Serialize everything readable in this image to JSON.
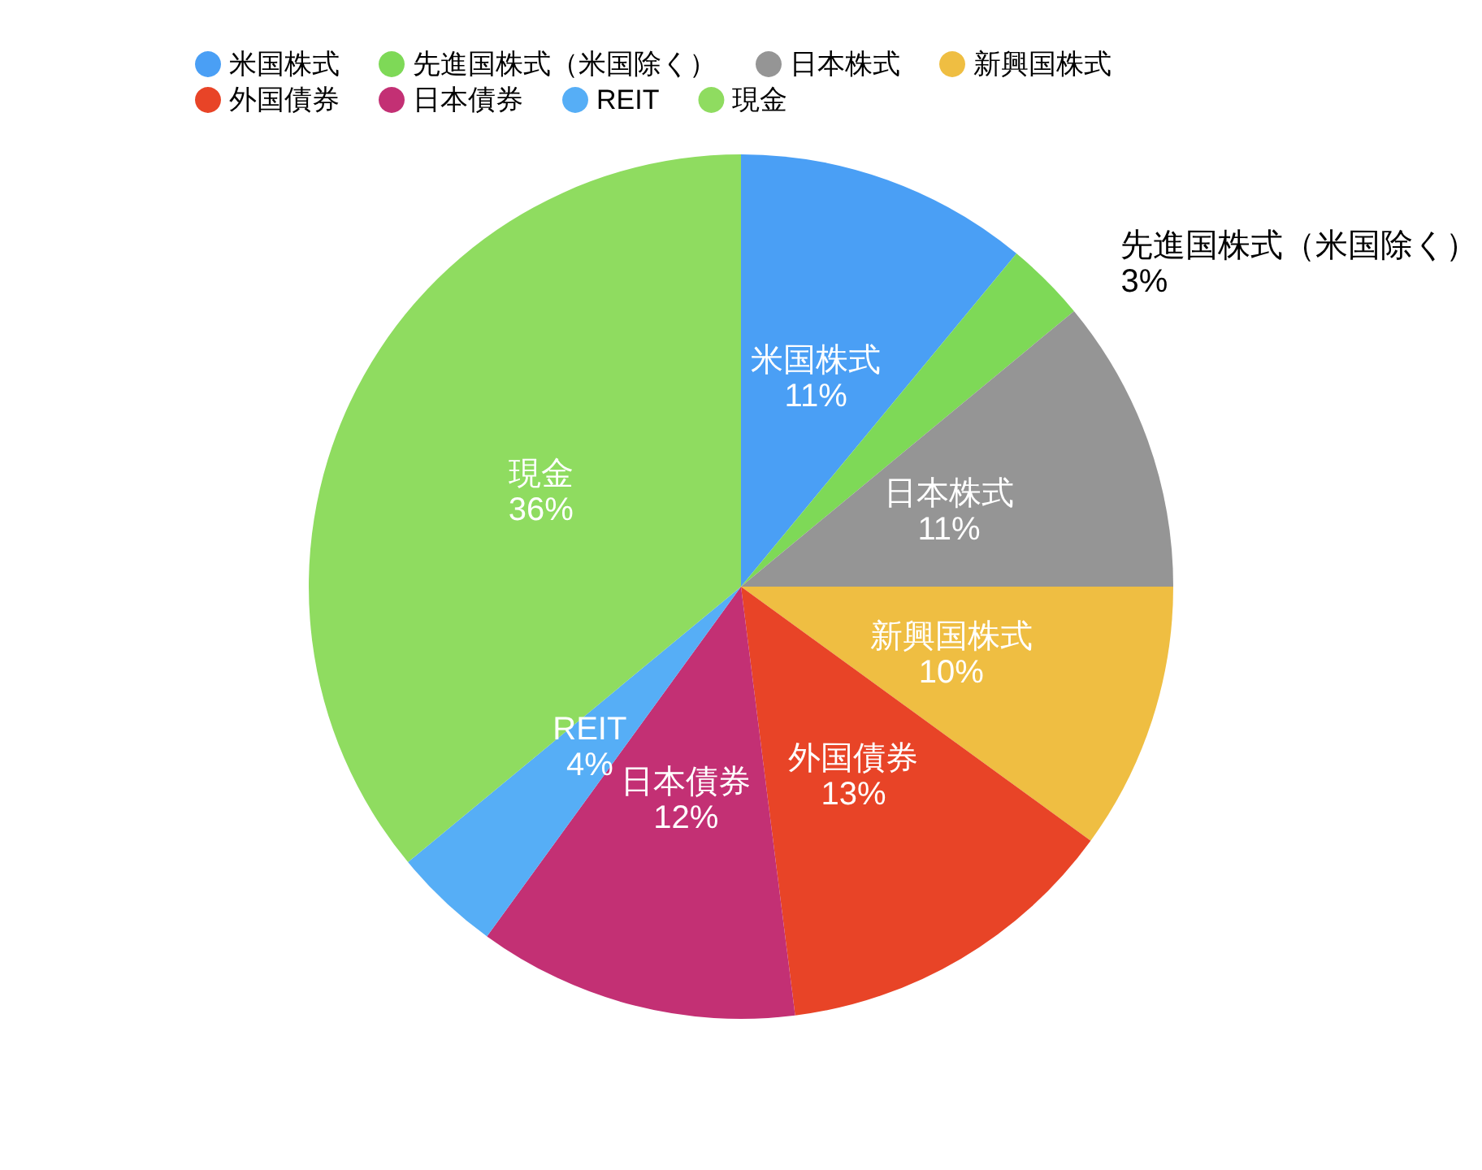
{
  "chart_data": {
    "type": "pie",
    "categories": [
      "米国株式",
      "先進国株式（米国除く）",
      "日本株式",
      "新興国株式",
      "外国債券",
      "日本債券",
      "REIT",
      "現金"
    ],
    "values": [
      11,
      3,
      11,
      10,
      13,
      12,
      4,
      36
    ],
    "colors": [
      "#4a9ff5",
      "#7ed957",
      "#959595",
      "#efbe42",
      "#e84427",
      "#c33074",
      "#56aef6",
      "#8fdc60"
    ],
    "value_labels": [
      "11%",
      "3%",
      "11%",
      "10%",
      "13%",
      "12%",
      "4%",
      "36%"
    ],
    "legend": "top"
  }
}
